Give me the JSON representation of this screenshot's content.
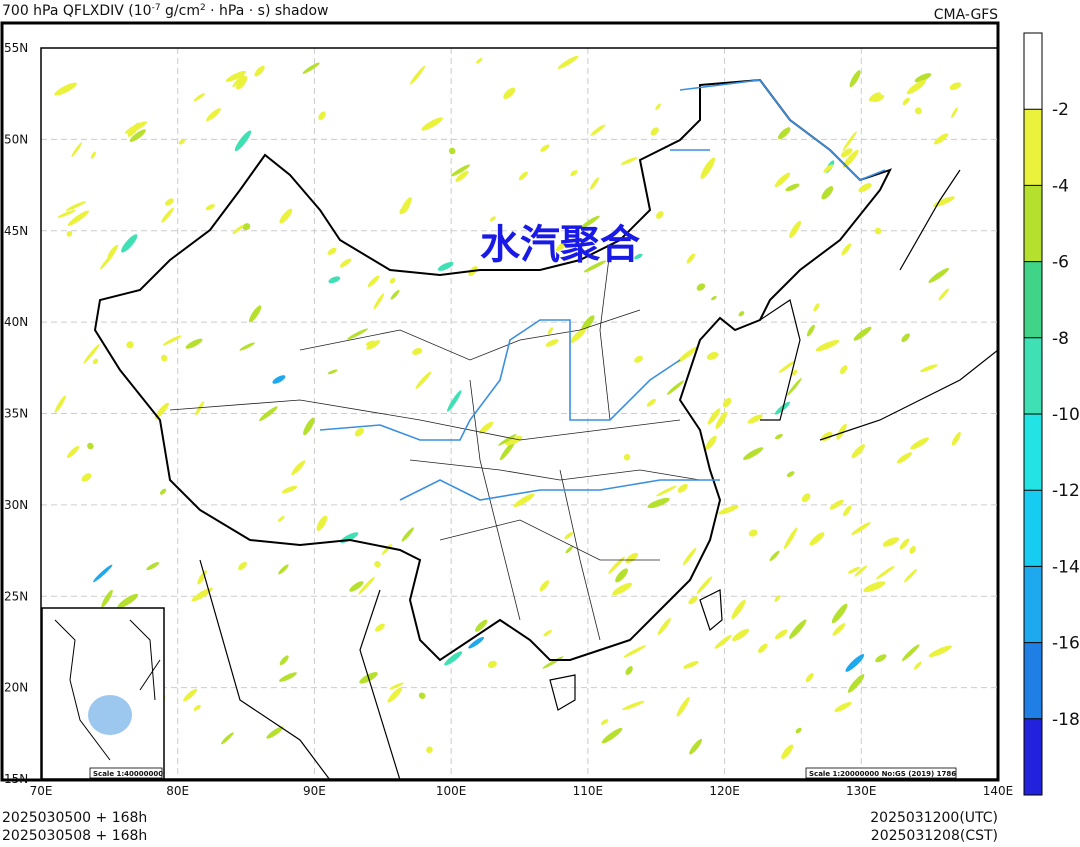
{
  "header": {
    "title": [
      "700 hPa QFLXDIV (10",
      "-7",
      " g/cm",
      "2",
      " · hPa · s) shadow"
    ],
    "model": "CMA-GFS"
  },
  "map": {
    "lon_ticks": [
      {
        "value": 70,
        "label": "70E"
      },
      {
        "value": 80,
        "label": "80E"
      },
      {
        "value": 90,
        "label": "90E"
      },
      {
        "value": 100,
        "label": "100E"
      },
      {
        "value": 110,
        "label": "110E"
      },
      {
        "value": 120,
        "label": "120E"
      },
      {
        "value": 130,
        "label": "130E"
      },
      {
        "value": 140,
        "label": "140E"
      }
    ],
    "lat_ticks": [
      {
        "value": 15,
        "label": "15N"
      },
      {
        "value": 20,
        "label": "20N"
      },
      {
        "value": 25,
        "label": "25N"
      },
      {
        "value": 30,
        "label": "30N"
      },
      {
        "value": 35,
        "label": "35N"
      },
      {
        "value": 40,
        "label": "40N"
      },
      {
        "value": 45,
        "label": "45N"
      },
      {
        "value": 50,
        "label": "50N"
      },
      {
        "value": 55,
        "label": "55N"
      }
    ],
    "lonlim": [
      70,
      140
    ],
    "latlim": [
      15,
      55
    ],
    "annotation": "水汽聚合",
    "inset_scale": "Scale 1:40000000",
    "main_scale": "Scale 1:20000000 No:GS (2019) 1786"
  },
  "colorbar": {
    "levels": [
      -2,
      -4,
      -6,
      -8,
      -10,
      -12,
      -14,
      -16,
      -18
    ],
    "colors": [
      "#ffffff",
      "#eaf23c",
      "#b6e02e",
      "#3fd488",
      "#3ee0b4",
      "#22e4e4",
      "#18cbf0",
      "#1ea8ee",
      "#1f7fe4",
      "#2222dc"
    ]
  },
  "footer": {
    "init_utc": "2025030500 + 168h",
    "init_cst": "2025030508 + 168h",
    "valid_utc": "2025031200(UTC)",
    "valid_cst": "2025031208(CST)"
  }
}
